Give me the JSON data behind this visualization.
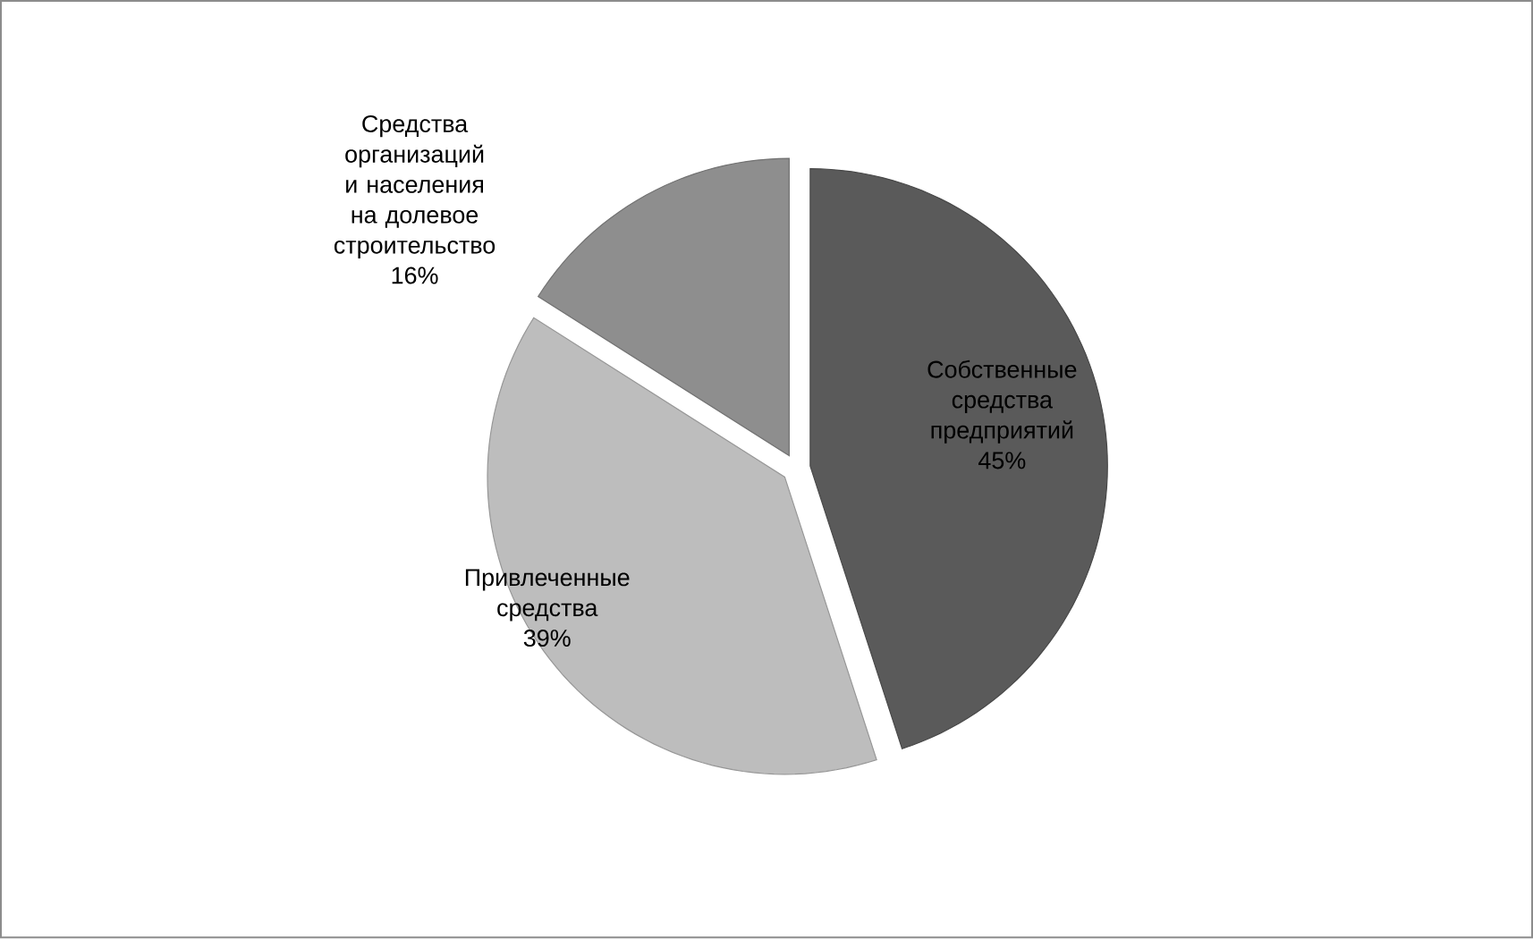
{
  "chart_data": {
    "type": "pie",
    "categories": [
      "Собственные средства предприятий",
      "Привлеченные средства",
      "Средства организаций и населения на долевое строительство"
    ],
    "values": [
      45,
      39,
      16
    ],
    "value_labels": [
      "45%",
      "39%",
      "16%"
    ],
    "colors": [
      "#5a5a5a",
      "#bdbdbd",
      "#8e8e8e"
    ],
    "legend": false
  }
}
